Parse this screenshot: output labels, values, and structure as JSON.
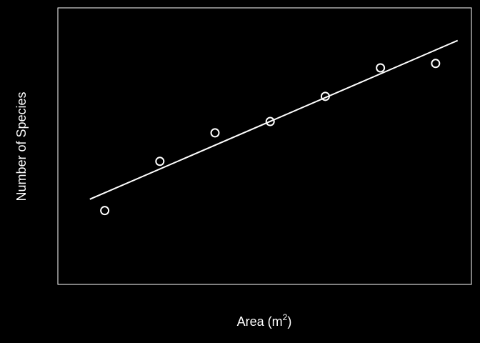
{
  "chart_data": {
    "type": "scatter",
    "xlabel": "Area (m",
    "xlabel_superscript": "2",
    "xlabel_suffix": ")",
    "ylabel": "Number of Species",
    "axis_ticks": "none",
    "x_tick_labels": "none",
    "y_tick_labels": "none",
    "xlim": [
      0.15,
      7.65
    ],
    "ylim": [
      0.0,
      1.0
    ],
    "points": [
      {
        "x": 1,
        "y": 0.267
      },
      {
        "x": 2,
        "y": 0.445
      },
      {
        "x": 3,
        "y": 0.548
      },
      {
        "x": 4,
        "y": 0.589
      },
      {
        "x": 5,
        "y": 0.68
      },
      {
        "x": 6,
        "y": 0.783
      },
      {
        "x": 7,
        "y": 0.799
      }
    ],
    "fit_line": {
      "x": [
        0.73,
        7.4
      ],
      "y": [
        0.308,
        0.882
      ]
    },
    "grid": false,
    "legend": "none",
    "colors": {
      "background": "#000000",
      "foreground": "#ffffff"
    }
  }
}
